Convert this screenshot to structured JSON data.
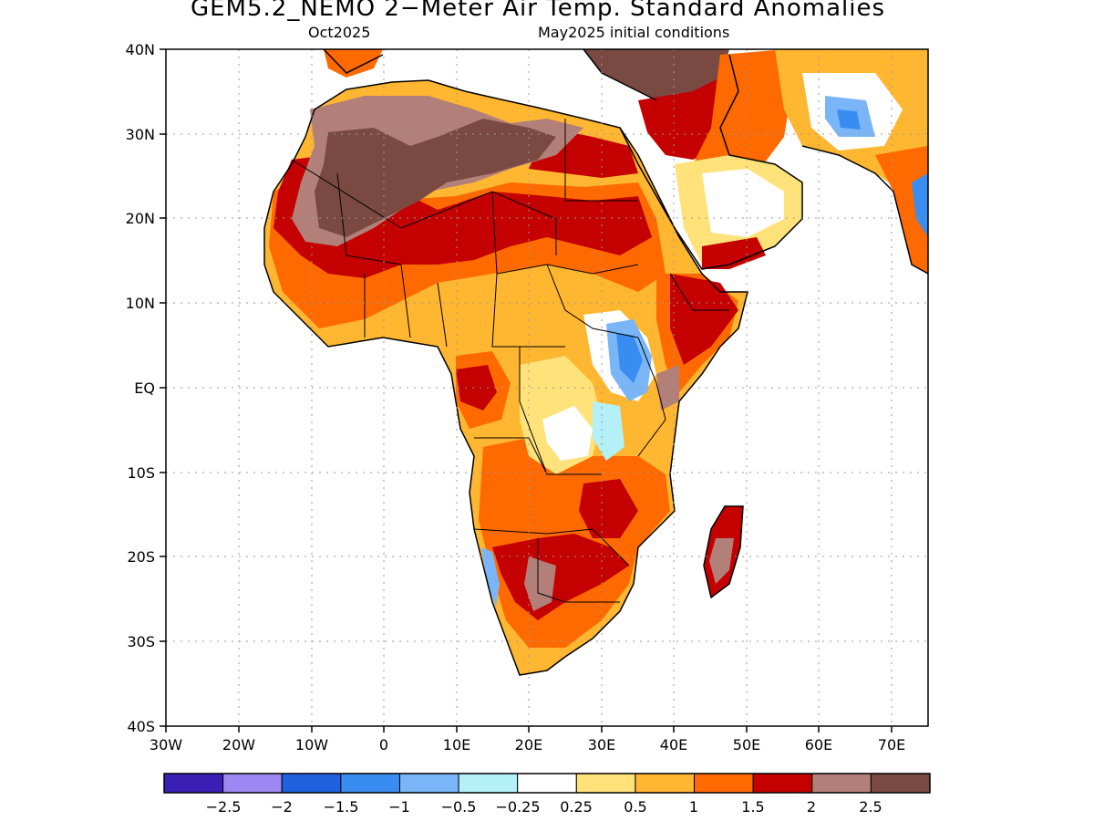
{
  "title": "GEM5.2_NEMO 2−Meter Air Temp. Standard Anomalies",
  "subtitle_left": "Oct2025",
  "subtitle_right": "May2025 initial conditions",
  "map": {
    "lat_labels": [
      "40N",
      "30N",
      "20N",
      "10N",
      "EQ",
      "10S",
      "20S",
      "30S",
      "40S"
    ],
    "lon_labels": [
      "30W",
      "20W",
      "10W",
      "0",
      "10E",
      "20E",
      "30E",
      "40E",
      "50E",
      "60E",
      "70E"
    ],
    "lat_range": [
      -40,
      40
    ],
    "lon_range": [
      -30,
      75
    ],
    "grid": "dotted"
  },
  "legend": {
    "colors": [
      "#3a1fb5",
      "#9b88f2",
      "#1f62e0",
      "#3a8df0",
      "#7ab6f7",
      "#b4f0f8",
      "#ffffff",
      "#ffe27a",
      "#ffb631",
      "#ff6a00",
      "#c40000",
      "#b38079",
      "#7a4a42"
    ],
    "labels": [
      "−2.5",
      "−2",
      "−1.5",
      "−1",
      "−0.5",
      "−0.25",
      "0.25",
      "0.5",
      "1",
      "1.5",
      "2",
      "2.5"
    ]
  },
  "colors": {
    "ocean": "#ffffff",
    "frame": "#000000"
  }
}
